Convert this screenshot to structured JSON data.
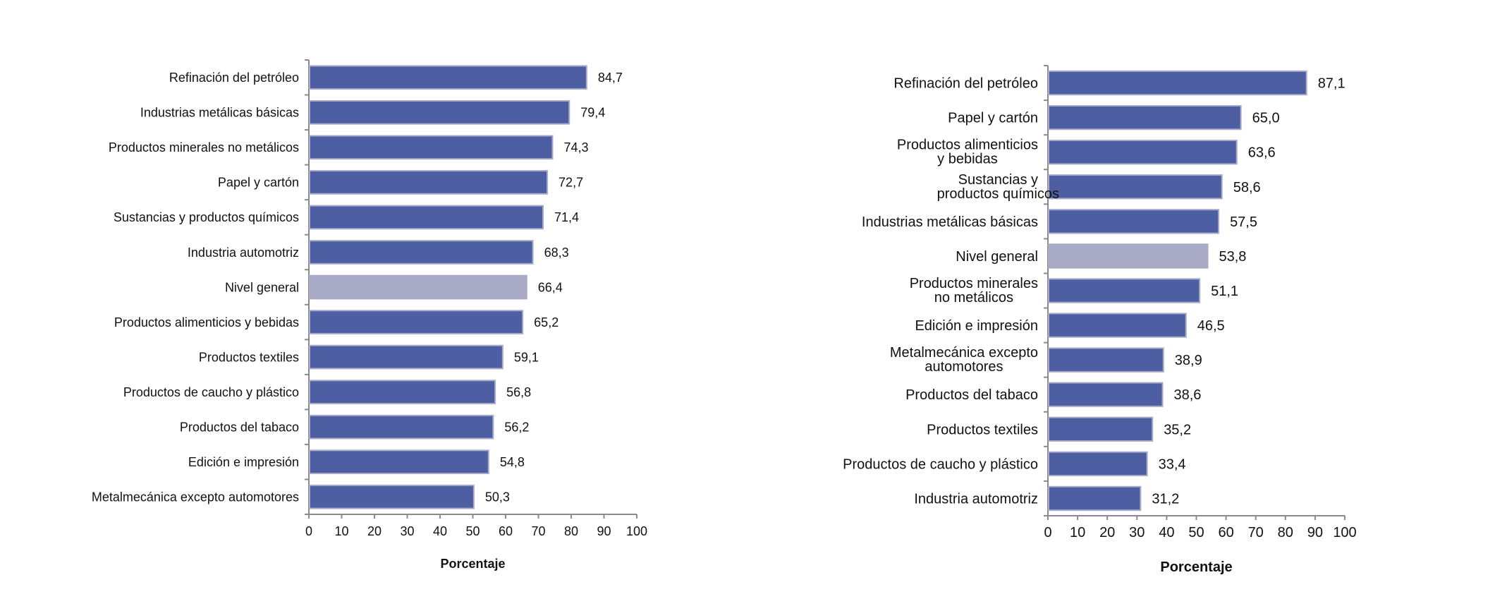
{
  "colors": {
    "bar": "#4d5ea3",
    "bar_border": "#a8acc8",
    "highlight": "#a9aac6",
    "axis": "#8a8a8a",
    "text": "#111111"
  },
  "chart_data": [
    {
      "type": "bar",
      "orientation": "horizontal",
      "categories": [
        "Refinación del petróleo",
        "Industrias metálicas básicas",
        "Productos minerales no metálicos",
        "Papel y cartón",
        "Sustancias y productos químicos",
        "Industria automotriz",
        "Nivel general",
        "Productos alimenticios y bebidas",
        "Productos textiles",
        "Productos de caucho y plástico",
        "Productos del tabaco",
        "Edición e impresión",
        "Metalmecánica excepto automotores"
      ],
      "values": [
        84.7,
        79.4,
        74.3,
        72.7,
        71.4,
        68.3,
        66.4,
        65.2,
        59.1,
        56.8,
        56.2,
        54.8,
        50.3
      ],
      "value_labels": [
        "84,7",
        "79,4",
        "74,3",
        "72,7",
        "71,4",
        "68,3",
        "66,4",
        "65,2",
        "59,1",
        "56,8",
        "56,2",
        "54,8",
        "50,3"
      ],
      "highlight": "Nivel general",
      "xlabel": "Porcentaje",
      "xlim": [
        0,
        100
      ],
      "xticks": [
        "0",
        "10",
        "20",
        "30",
        "40",
        "50",
        "60",
        "70",
        "80",
        "90",
        "100"
      ],
      "grid": false
    },
    {
      "type": "bar",
      "orientation": "horizontal",
      "categories": [
        "Refinación del petróleo",
        "Papel y cartón",
        "Productos alimenticios y bebidas",
        "Sustancias y productos químicos",
        "Industrias metálicas básicas",
        "Nivel general",
        "Productos minerales no metálicos",
        "Edición e impresión",
        "Metalmecánica excepto automotores",
        "Productos del tabaco",
        "Productos textiles",
        "Productos de caucho y plástico",
        "Industria automotriz"
      ],
      "values": [
        87.1,
        65.0,
        63.6,
        58.6,
        57.5,
        53.8,
        51.1,
        46.5,
        38.9,
        38.6,
        35.2,
        33.4,
        31.2
      ],
      "value_labels": [
        "87,1",
        "65,0",
        "63,6",
        "58,6",
        "57,5",
        "53,8",
        "51,1",
        "46,5",
        "38,9",
        "38,6",
        "35,2",
        "33,4",
        "31,2"
      ],
      "highlight": "Nivel general",
      "xlabel": "Porcentaje",
      "xlim": [
        0,
        100
      ],
      "xticks": [
        "0",
        "10",
        "20",
        "30",
        "40",
        "50",
        "60",
        "70",
        "80",
        "90",
        "100"
      ],
      "grid": false
    }
  ]
}
